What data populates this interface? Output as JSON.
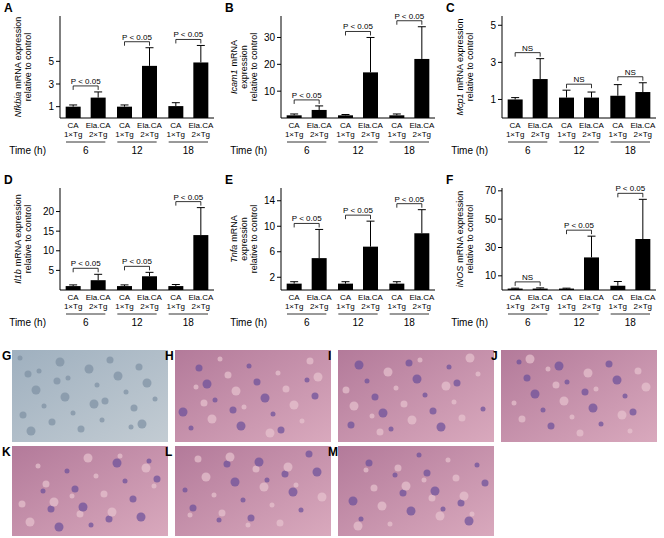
{
  "chart_data": [
    {
      "panel": "A",
      "type": "bar",
      "gene": "Nfkbia",
      "y_label": [
        "mRNA expression",
        "relative to control"
      ],
      "categories": [
        "CA\n1×Tg",
        "Ela.CA\n2×Tg",
        "CA\n1×Tg",
        "Ela.CA\n2×Tg",
        "CA\n1×Tg",
        "Ela.CA\n2×Tg"
      ],
      "values": [
        1.0,
        1.8,
        1.0,
        4.6,
        1.05,
        4.9
      ],
      "errors": [
        0.15,
        0.5,
        0.15,
        1.6,
        0.3,
        1.5
      ],
      "color": "#000000",
      "ylim": [
        0,
        9
      ],
      "yticks": [
        1,
        3,
        5
      ],
      "groups": [
        6,
        12,
        18
      ],
      "x_label": "Time (h)",
      "significance": [
        "P < 0.05",
        "P < 0.05",
        "P < 0.05"
      ]
    },
    {
      "panel": "B",
      "type": "bar",
      "gene": "Icam1",
      "y_label": [
        "mRNA",
        "expression",
        "relative to control"
      ],
      "categories": [
        "CA\n1×Tg",
        "Ela.CA\n2×Tg",
        "CA\n1×Tg",
        "Ela.CA\n2×Tg",
        "CA\n1×Tg",
        "Ela.CA\n2×Tg"
      ],
      "values": [
        1.0,
        3.0,
        1.0,
        17,
        1.0,
        22
      ],
      "errors": [
        0.5,
        1.5,
        0.3,
        13,
        0.5,
        12
      ],
      "color": "#000000",
      "ylim": [
        0,
        38
      ],
      "yticks": [
        10,
        20,
        30
      ],
      "groups": [
        6,
        12,
        18
      ],
      "x_label": "Time (h)",
      "significance": [
        "P < 0.05",
        "P < 0.05",
        "P < 0.05"
      ]
    },
    {
      "panel": "C",
      "type": "bar",
      "gene": "Mcp1",
      "y_label": [
        "mRNA expression",
        "relative to control"
      ],
      "categories": [
        "CA\n1×Tg",
        "Ela.CA\n2×Tg",
        "CA\n1×Tg",
        "Ela.CA\n2×Tg",
        "CA\n1×Tg",
        "Ela.CA\n2×Tg"
      ],
      "values": [
        1.0,
        2.1,
        1.1,
        1.1,
        1.2,
        1.4
      ],
      "errors": [
        0.1,
        1.1,
        0.4,
        0.3,
        0.6,
        0.5
      ],
      "color": "#000000",
      "ylim": [
        0,
        5.5
      ],
      "yticks": [
        1,
        3,
        5
      ],
      "groups": [
        6,
        12,
        18
      ],
      "x_label": "Time (h)",
      "significance": [
        "NS",
        "NS",
        "NS"
      ]
    },
    {
      "panel": "D",
      "type": "bar",
      "gene": "Il1b",
      "y_label": [
        "mRNA expression",
        "relative to control"
      ],
      "categories": [
        "CA\n1×Tg",
        "Ela.CA\n2×Tg",
        "CA\n1×Tg",
        "Ela.CA\n2×Tg",
        "CA\n1×Tg",
        "Ela.CA\n2×Tg"
      ],
      "values": [
        1.0,
        2.5,
        1.0,
        3.5,
        1.0,
        14
      ],
      "errors": [
        0.3,
        1.5,
        0.3,
        1.0,
        0.4,
        7
      ],
      "color": "#000000",
      "ylim": [
        0,
        26
      ],
      "yticks": [
        5,
        10,
        15,
        20
      ],
      "groups": [
        6,
        12,
        18
      ],
      "x_label": "Time (h)",
      "significance": [
        "P < 0.05",
        "P < 0.05",
        "P < 0.05"
      ]
    },
    {
      "panel": "E",
      "type": "bar",
      "gene": "Tnfa",
      "y_label": [
        "mRNA",
        "expression",
        "relative to control"
      ],
      "categories": [
        "CA\n1×Tg",
        "Ela.CA\n2×Tg",
        "CA\n1×Tg",
        "Ela.CA\n2×Tg",
        "CA\n1×Tg",
        "Ela.CA\n2×Tg"
      ],
      "values": [
        1.0,
        5.0,
        1.0,
        6.8,
        1.0,
        8.9
      ],
      "errors": [
        0.3,
        4.5,
        0.3,
        4.0,
        0.3,
        3.7
      ],
      "color": "#000000",
      "ylim": [
        0,
        16
      ],
      "yticks": [
        2,
        6,
        10,
        14
      ],
      "groups": [
        6,
        12,
        18
      ],
      "x_label": "Time (h)",
      "significance": [
        "P < 0.05",
        "P < 0.05",
        "P < 0.05"
      ]
    },
    {
      "panel": "F",
      "type": "bar",
      "gene": "iNOS",
      "y_label": [
        "mRNA expression",
        "relative to control"
      ],
      "categories": [
        "CA\n1×Tg",
        "Ela.CA\n2×Tg",
        "CA\n1×Tg",
        "Ela.CA\n2×Tg",
        "CA\n1×Tg",
        "Ela.CA\n2×Tg"
      ],
      "values": [
        1.0,
        1.0,
        1.0,
        23,
        3.0,
        36
      ],
      "errors": [
        0.3,
        0.5,
        0.3,
        15,
        3.0,
        28
      ],
      "color": "#000000",
      "ylim": [
        0,
        72
      ],
      "yticks": [
        10,
        30,
        50,
        70
      ],
      "groups": [
        6,
        12,
        18
      ],
      "x_label": "Time (h)",
      "significance": [
        "NS",
        "P < 0.05",
        "P < 0.05"
      ]
    }
  ],
  "image_panels": [
    "G",
    "H",
    "I",
    "J",
    "K",
    "L",
    "M"
  ]
}
